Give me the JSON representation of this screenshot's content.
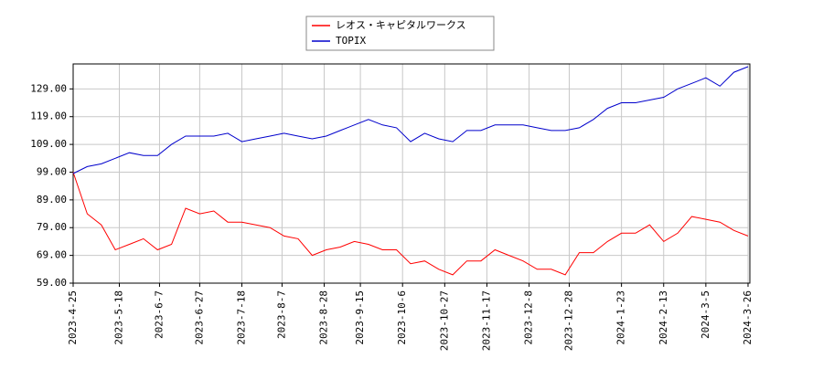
{
  "chart_data": {
    "type": "line",
    "x": [
      "2023-4-25",
      "2023-5-2",
      "2023-5-9",
      "2023-5-16",
      "2023-5-23",
      "2023-5-30",
      "2023-6-6",
      "2023-6-13",
      "2023-6-20",
      "2023-6-27",
      "2023-7-4",
      "2023-7-11",
      "2023-7-18",
      "2023-7-25",
      "2023-8-1",
      "2023-8-8",
      "2023-8-15",
      "2023-8-22",
      "2023-8-29",
      "2023-9-5",
      "2023-9-12",
      "2023-9-19",
      "2023-9-26",
      "2023-10-3",
      "2023-10-10",
      "2023-10-17",
      "2023-10-24",
      "2023-10-31",
      "2023-11-7",
      "2023-11-14",
      "2023-11-21",
      "2023-11-28",
      "2023-12-5",
      "2023-12-12",
      "2023-12-19",
      "2023-12-26",
      "2024-1-2",
      "2024-1-9",
      "2024-1-16",
      "2024-1-23",
      "2024-1-30",
      "2024-2-6",
      "2024-2-13",
      "2024-2-20",
      "2024-2-27",
      "2024-3-5",
      "2024-3-12",
      "2024-3-19",
      "2024-3-26"
    ],
    "series": [
      {
        "name": "レオス・キャピタルワークス",
        "color": "#ff0000",
        "values": [
          99,
          84,
          80,
          71,
          73,
          75,
          71,
          73,
          86,
          84,
          85,
          81,
          81,
          80,
          79,
          76,
          75,
          69,
          71,
          72,
          74,
          73,
          71,
          71,
          66,
          67,
          64,
          62,
          67,
          67,
          71,
          69,
          67,
          64,
          64,
          62,
          70,
          70,
          74,
          77,
          77,
          80,
          74,
          77,
          83,
          82,
          81,
          78,
          76
        ]
      },
      {
        "name": "TOPIX",
        "color": "#0000cc",
        "values": [
          98.5,
          101,
          102,
          104,
          106,
          105,
          105,
          109,
          112,
          112,
          112,
          113,
          110,
          111,
          112,
          113,
          112,
          111,
          112,
          114,
          116,
          118,
          116,
          115,
          110,
          113,
          111,
          110,
          114,
          114,
          116,
          116,
          116,
          115,
          114,
          114,
          115,
          118,
          122,
          124,
          124,
          125,
          126,
          129,
          131,
          133,
          130,
          135,
          137
        ]
      }
    ],
    "xlim": [
      "2023-4-25",
      "2024-3-26"
    ],
    "xticks": [
      "2023-4-25",
      "2023-5-18",
      "2023-6-7",
      "2023-6-27",
      "2023-7-18",
      "2023-8-7",
      "2023-8-28",
      "2023-9-15",
      "2023-10-6",
      "2023-10-27",
      "2023-11-17",
      "2023-12-8",
      "2023-12-28",
      "2024-1-23",
      "2024-2-13",
      "2024-3-5",
      "2024-3-26"
    ],
    "ylim": [
      59,
      138
    ],
    "yticks": [
      {
        "value": 59,
        "label": "59.00"
      },
      {
        "value": 69,
        "label": "69.00"
      },
      {
        "value": 79,
        "label": "79.00"
      },
      {
        "value": 89,
        "label": "89.00"
      },
      {
        "value": 99,
        "label": "99.00"
      },
      {
        "value": 109,
        "label": "109.00"
      },
      {
        "value": 119,
        "label": "119.00"
      },
      {
        "value": 129,
        "label": "129.00"
      }
    ],
    "grid": true,
    "legend": "top"
  }
}
